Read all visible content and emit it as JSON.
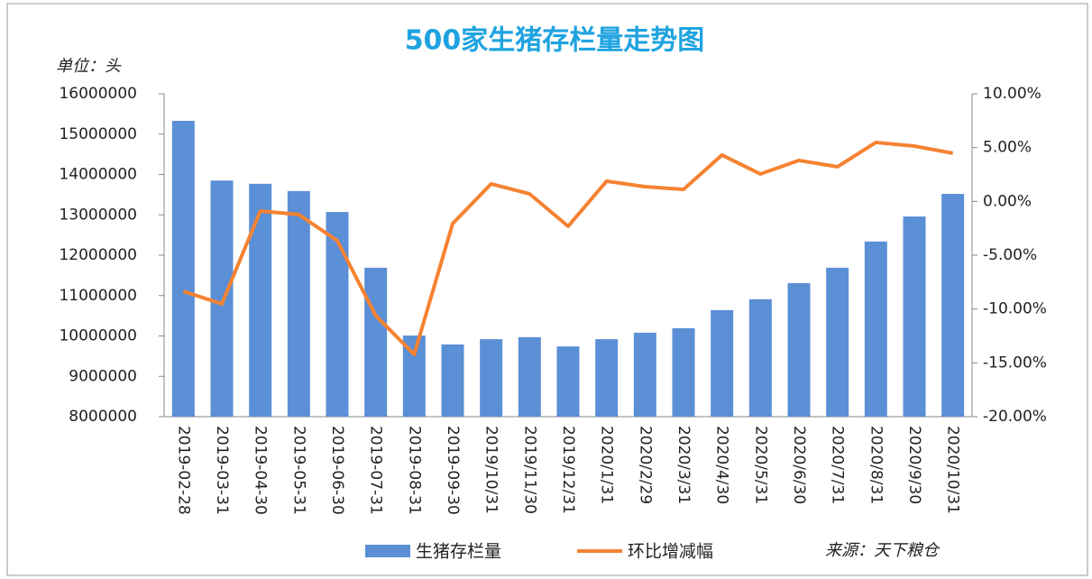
{
  "chart_data": {
    "type": "bar_line",
    "title": "500家生猪存栏量走势图",
    "y_label": "单位：头",
    "source": "来源：天下粮仓",
    "categories": [
      "2019-02-28",
      "2019-03-31",
      "2019-04-30",
      "2019-05-31",
      "2019-06-30",
      "2019-07-31",
      "2019-08-31",
      "2019-09-30",
      "2019/10/31",
      "2019/11/30",
      "2019/12/31",
      "2020/1/31",
      "2020/2/29",
      "2020/3/31",
      "2020/4/30",
      "2020/5/31",
      "2020/6/30",
      "2020/7/31",
      "2020/8/31",
      "2020/9/30",
      "2020/10/31"
    ],
    "series": [
      {
        "name": "生猪存栏量",
        "type": "bar",
        "color": "#5b8fd6",
        "values": [
          15330000,
          13850000,
          13770000,
          13590000,
          13070000,
          11690000,
          10010000,
          9790000,
          9920000,
          9970000,
          9740000,
          9920000,
          10080000,
          10190000,
          10640000,
          10910000,
          11310000,
          11690000,
          12340000,
          12960000,
          13520000
        ]
      },
      {
        "name": "环比增减幅",
        "type": "line",
        "axis": "y2",
        "color": "#f58231",
        "values": [
          -8.35,
          -9.52,
          -0.89,
          -1.22,
          -3.65,
          -10.61,
          -14.22,
          -2.06,
          1.63,
          0.7,
          -2.31,
          1.88,
          1.37,
          1.12,
          4.31,
          2.55,
          3.81,
          3.22,
          5.48,
          5.14,
          4.48
        ]
      }
    ],
    "ylim": [
      8000000,
      16000000
    ],
    "yticks": [
      8000000,
      9000000,
      10000000,
      11000000,
      12000000,
      13000000,
      14000000,
      15000000,
      16000000
    ],
    "y2lim": [
      -20,
      10
    ],
    "y2ticks": [
      {
        "value": -20,
        "label": "-20.00%"
      },
      {
        "value": -15,
        "label": "-15.00%"
      },
      {
        "value": -10,
        "label": "-10.00%"
      },
      {
        "value": -5,
        "label": "-5.00%"
      },
      {
        "value": 0,
        "label": "0.00%"
      },
      {
        "value": 5,
        "label": "5.00%"
      },
      {
        "value": 10,
        "label": "10.00%"
      }
    ]
  }
}
